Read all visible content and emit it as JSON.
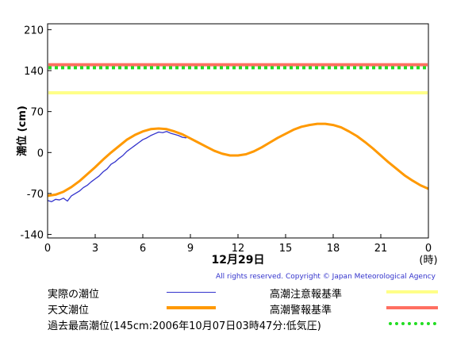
{
  "chart_data": {
    "type": "line",
    "ylabel": "潮位 (cm)",
    "x_ticks": [
      "0",
      "3",
      "6",
      "9",
      "12",
      "15",
      "18",
      "21",
      "0"
    ],
    "x_unit_label": "(時)",
    "date_label": "12月29日",
    "y_ticks": [
      "210",
      "140",
      "70",
      "0",
      "-70",
      "-140"
    ],
    "xlim": [
      0,
      24
    ],
    "ylim": [
      -146,
      220
    ],
    "grid": false,
    "series": [
      {
        "name": "実際の潮位",
        "color": "#3333cc",
        "x": [
          0,
          0.25,
          0.5,
          0.75,
          1.0,
          1.25,
          1.5,
          1.75,
          2.0,
          2.25,
          2.5,
          2.75,
          3.0,
          3.25,
          3.5,
          3.75,
          4.0,
          4.25,
          4.5,
          4.75,
          5.0,
          5.25,
          5.5,
          5.75,
          6.0,
          6.25,
          6.5,
          6.75,
          7.0,
          7.25,
          7.5,
          7.75,
          8.0,
          8.25,
          8.5,
          8.75
        ],
        "y": [
          -82,
          -84,
          -80,
          -81,
          -78,
          -83,
          -74,
          -70,
          -66,
          -60,
          -56,
          -50,
          -45,
          -40,
          -33,
          -28,
          -20,
          -16,
          -10,
          -5,
          2,
          7,
          12,
          17,
          22,
          25,
          29,
          32,
          35,
          34,
          36,
          33,
          31,
          29,
          26,
          25
        ]
      },
      {
        "name": "天文潮位",
        "color": "#ff9900",
        "x": [
          0,
          0.5,
          1,
          1.5,
          2,
          2.5,
          3,
          3.5,
          4,
          4.5,
          5,
          5.5,
          6,
          6.5,
          7,
          7.5,
          8,
          8.5,
          9,
          9.5,
          10,
          10.5,
          11,
          11.5,
          12,
          12.5,
          13,
          13.5,
          14,
          14.5,
          15,
          15.5,
          16,
          16.5,
          17,
          17.5,
          18,
          18.5,
          19,
          19.5,
          20,
          20.5,
          21,
          21.5,
          22,
          22.5,
          23,
          23.5,
          24
        ],
        "y": [
          -74,
          -72,
          -67,
          -59,
          -49,
          -37,
          -25,
          -12,
          0,
          11,
          22,
          30,
          36,
          40,
          41,
          40,
          36,
          31,
          24,
          17,
          10,
          3,
          -2,
          -5,
          -5,
          -3,
          2,
          9,
          17,
          25,
          32,
          39,
          44,
          47,
          49,
          49,
          47,
          43,
          36,
          28,
          18,
          7,
          -5,
          -17,
          -28,
          -39,
          -48,
          -56,
          -62
        ]
      }
    ],
    "reference_lines": [
      {
        "name": "高潮注意報基準",
        "value": 102,
        "color": "#ffff88",
        "style": "solid"
      },
      {
        "name": "高潮警報基準",
        "value": 150,
        "color": "#ff6f61",
        "style": "solid"
      },
      {
        "name": "過去最高潮位(145cm:2006年10月07日03時47分:低気圧)",
        "value": 145,
        "color": "#22dd22",
        "style": "dotted"
      }
    ]
  },
  "copyright": "All rights reserved. Copyright © Japan Meteorological Agency",
  "legend": {
    "actual": "実際の潮位",
    "astronomical": "天文潮位",
    "caution": "高潮注意報基準",
    "warning": "高潮警報基準",
    "record": "過去最高潮位(145cm:2006年10月07日03時47分:低気圧)"
  },
  "colors": {
    "actual": "#3333cc",
    "astronomical": "#ff9900",
    "caution": "#ffff88",
    "warning": "#ff6f61",
    "record": "#22dd22"
  }
}
